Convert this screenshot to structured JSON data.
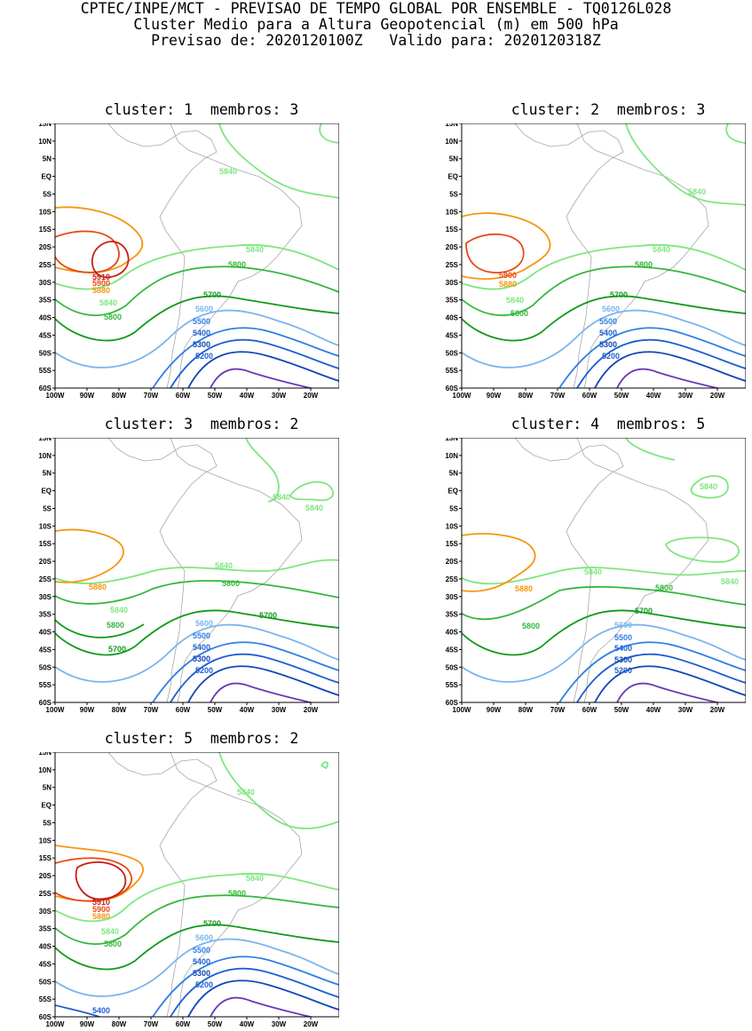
{
  "header": {
    "line1": "CPTEC/INPE/MCT - PREVISAO DE TEMPO GLOBAL POR ENSEMBLE - TQ0126L028",
    "line2": "Cluster Medio para a Altura Geopotencial (m) em 500 hPa",
    "line3": "Previsao de: 2020120100Z   Valido para: 2020120318Z"
  },
  "axes": {
    "lat_labels": [
      "15N",
      "10N",
      "5N",
      "EQ",
      "5S",
      "10S",
      "15S",
      "20S",
      "25S",
      "30S",
      "35S",
      "40S",
      "45S",
      "50S",
      "55S",
      "60S"
    ],
    "lon_labels": [
      "100W",
      "90W",
      "80W",
      "70W",
      "60W",
      "50W",
      "40W",
      "30W",
      "20W"
    ]
  },
  "colors": {
    "c5200": "#6a3ab8",
    "c5300": "#1446b4",
    "c5400": "#1e5fd2",
    "c5500": "#2f7fe6",
    "c5600": "#7ab4f0",
    "c5700": "#119a1a",
    "c5800": "#33b73a",
    "c5840": "#7ee67e",
    "c5880": "#f5960f",
    "c5900": "#e64a14",
    "c5910": "#c81e14",
    "coast": "#a8a8a8"
  },
  "clusters": [
    {
      "title": "cluster: 1  membros: 3",
      "labels": {
        "l5840a": "5840",
        "l5840b": "5840",
        "l5840c": "5840",
        "l5800a": "5800",
        "l5800b": "5800",
        "l5700": "5700",
        "l5600": "5600",
        "l5500": "5500",
        "l5400": "5400",
        "l5300": "5300",
        "l5200": "5200",
        "l5880": "5880",
        "l5900": "5900",
        "l5910": "5910"
      }
    },
    {
      "title": "cluster: 2  membros: 3",
      "labels": {
        "l5840a": "5840",
        "l5840b": "5840",
        "l5840c": "5840",
        "l5800a": "5800",
        "l5800b": "5800",
        "l5700": "5700",
        "l5600": "5600",
        "l5500": "5500",
        "l5400": "5400",
        "l5300": "5300",
        "l5200": "5200",
        "l5880": "5880",
        "l5900": "5900"
      }
    },
    {
      "title": "cluster: 3  membros: 2",
      "labels": {
        "l5840a": "5840",
        "l5840b": "5840",
        "l5840c": "5840",
        "l5840d": "5840",
        "l5800a": "5800",
        "l5800b": "5800",
        "l5700a": "5700",
        "l5700b": "5700",
        "l5600": "5600",
        "l5500": "5500",
        "l5400": "5400",
        "l5300": "5300",
        "l5200": "5200",
        "l5880": "5880"
      }
    },
    {
      "title": "cluster: 4  membros: 5",
      "labels": {
        "l5840a": "5840",
        "l5840b": "5840",
        "l5840c": "5840",
        "l5800a": "5800",
        "l5800b": "5800",
        "l5700": "5700",
        "l5600": "5600",
        "l5500": "5500",
        "l5400": "5400",
        "l5300": "5300",
        "l5200": "5200",
        "l5880": "5880"
      }
    },
    {
      "title": "cluster: 5  membros: 2",
      "labels": {
        "l5840a": "5840",
        "l5840b": "5840",
        "l5840c": "5840",
        "l5800a": "5800",
        "l5800b": "5800",
        "l5700": "5700",
        "l5600": "5600",
        "l5500": "5500",
        "l5400": "5400",
        "l5300": "5300",
        "l5200": "5200",
        "l5880": "5880",
        "l5900": "5900",
        "l5910": "5910",
        "l5400b": "5400"
      }
    }
  ]
}
